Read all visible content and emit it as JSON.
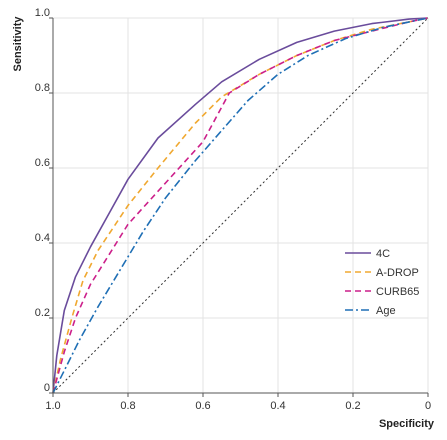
{
  "chart_data": {
    "type": "line",
    "xlabel": "Specificity",
    "ylabel": "Sensitivity",
    "xlim": [
      1.0,
      0.0
    ],
    "ylim": [
      0.0,
      1.0
    ],
    "x_reversed": true,
    "grid": true,
    "legend_position": "bottom-right",
    "x_ticks": [
      {
        "value": 1.0,
        "label": "1.0"
      },
      {
        "value": 0.8,
        "label": "0.8"
      },
      {
        "value": 0.6,
        "label": "0.6"
      },
      {
        "value": 0.4,
        "label": "0.4"
      },
      {
        "value": 0.2,
        "label": "0.2"
      },
      {
        "value": 0.0,
        "label": "0"
      }
    ],
    "y_ticks": [
      {
        "value": 0.0,
        "label": "0"
      },
      {
        "value": 0.2,
        "label": "0.2"
      },
      {
        "value": 0.4,
        "label": "0.4"
      },
      {
        "value": 0.6,
        "label": "0.6"
      },
      {
        "value": 0.8,
        "label": "0.8"
      },
      {
        "value": 1.0,
        "label": "1.0"
      }
    ],
    "reference_line": {
      "x": [
        1.0,
        0.0
      ],
      "y": [
        0.0,
        1.0
      ],
      "color": "#333333",
      "dash": "dotted"
    },
    "series": [
      {
        "name": "4C",
        "color": "#6a4c9c",
        "dash": "solid",
        "points": [
          [
            1.0,
            0.0
          ],
          [
            0.99,
            0.1
          ],
          [
            0.97,
            0.22
          ],
          [
            0.94,
            0.31
          ],
          [
            0.9,
            0.39
          ],
          [
            0.85,
            0.48
          ],
          [
            0.8,
            0.57
          ],
          [
            0.72,
            0.68
          ],
          [
            0.62,
            0.77
          ],
          [
            0.55,
            0.83
          ],
          [
            0.45,
            0.89
          ],
          [
            0.35,
            0.935
          ],
          [
            0.25,
            0.965
          ],
          [
            0.15,
            0.985
          ],
          [
            0.05,
            0.997
          ],
          [
            0.0,
            1.0
          ]
        ]
      },
      {
        "name": "A-DROP",
        "color": "#f0a830",
        "dash": "dashed",
        "points": [
          [
            1.0,
            0.0
          ],
          [
            0.98,
            0.09
          ],
          [
            0.95,
            0.2
          ],
          [
            0.92,
            0.3
          ],
          [
            0.88,
            0.38
          ],
          [
            0.8,
            0.5
          ],
          [
            0.72,
            0.6
          ],
          [
            0.62,
            0.72
          ],
          [
            0.55,
            0.79
          ],
          [
            0.45,
            0.85
          ],
          [
            0.35,
            0.9
          ],
          [
            0.25,
            0.94
          ],
          [
            0.15,
            0.97
          ],
          [
            0.05,
            0.99
          ],
          [
            0.0,
            1.0
          ]
        ]
      },
      {
        "name": "CURB65",
        "color": "#cc1f8a",
        "dash": "dashed",
        "points": [
          [
            1.0,
            0.0
          ],
          [
            0.97,
            0.11
          ],
          [
            0.94,
            0.2
          ],
          [
            0.9,
            0.29
          ],
          [
            0.85,
            0.37
          ],
          [
            0.8,
            0.45
          ],
          [
            0.7,
            0.56
          ],
          [
            0.6,
            0.67
          ],
          [
            0.53,
            0.8
          ],
          [
            0.45,
            0.85
          ],
          [
            0.35,
            0.9
          ],
          [
            0.25,
            0.94
          ],
          [
            0.15,
            0.965
          ],
          [
            0.05,
            0.99
          ],
          [
            0.0,
            1.0
          ]
        ]
      },
      {
        "name": "Age",
        "color": "#1f6fb5",
        "dash": "dashdot",
        "points": [
          [
            1.0,
            0.0
          ],
          [
            0.97,
            0.06
          ],
          [
            0.93,
            0.14
          ],
          [
            0.88,
            0.23
          ],
          [
            0.82,
            0.33
          ],
          [
            0.76,
            0.43
          ],
          [
            0.7,
            0.52
          ],
          [
            0.62,
            0.62
          ],
          [
            0.55,
            0.7
          ],
          [
            0.48,
            0.78
          ],
          [
            0.4,
            0.85
          ],
          [
            0.32,
            0.9
          ],
          [
            0.22,
            0.945
          ],
          [
            0.12,
            0.975
          ],
          [
            0.0,
            1.0
          ]
        ]
      }
    ]
  }
}
